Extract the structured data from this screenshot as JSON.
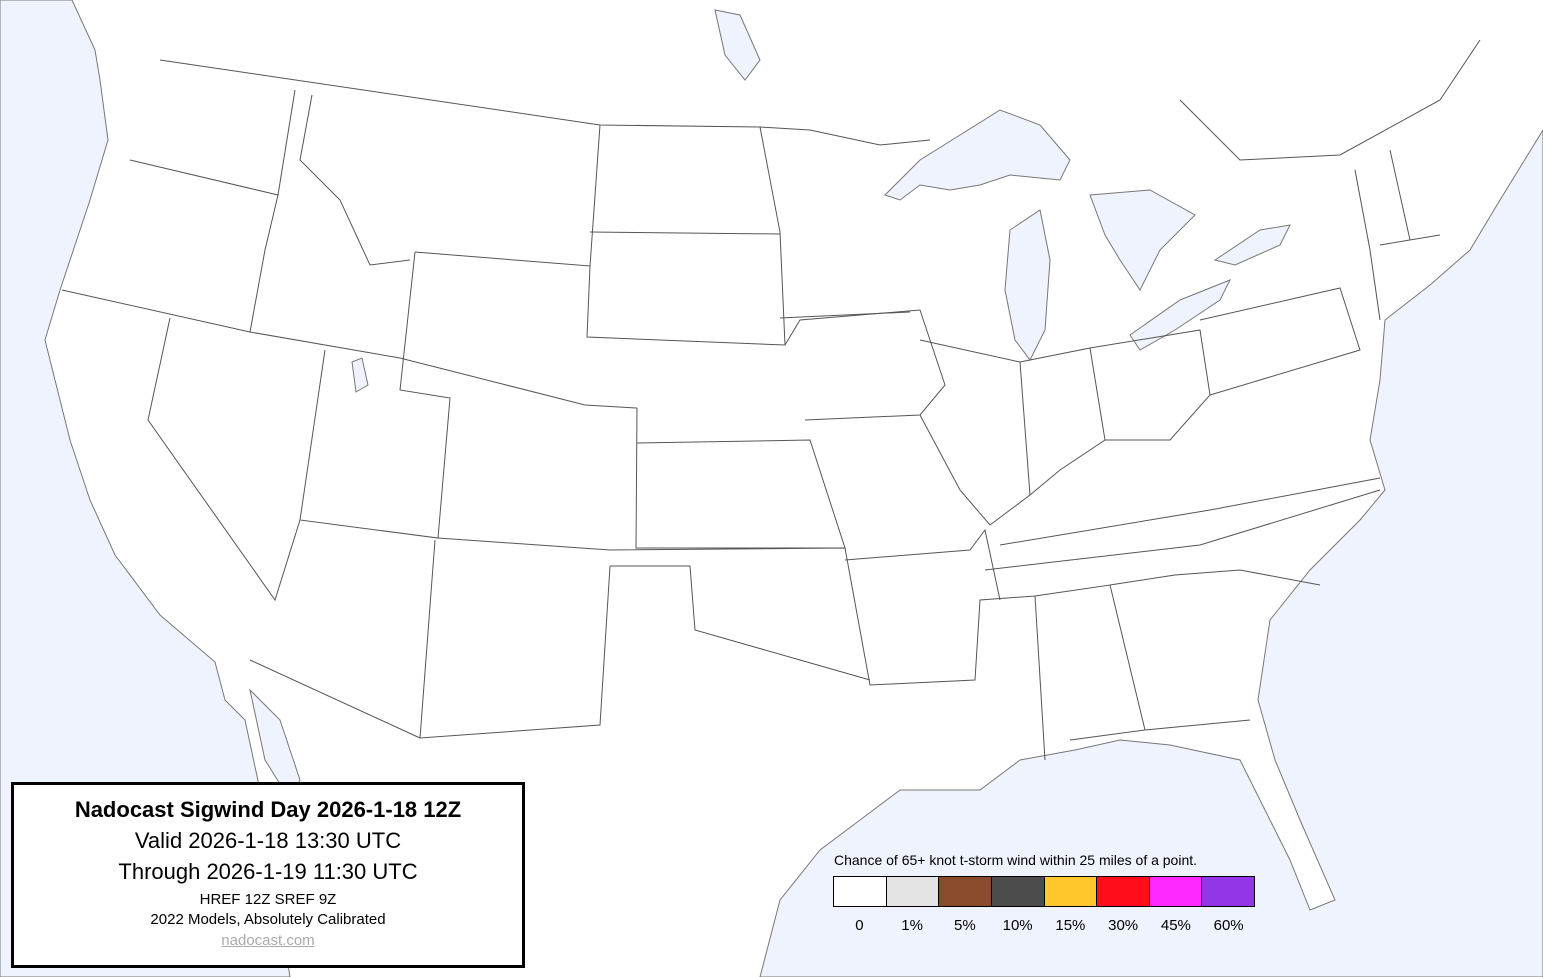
{
  "info_box": {
    "title": "Nadocast Sigwind Day 2026-1-18 12Z",
    "valid": "Valid 2026-1-18 13:30 UTC",
    "through": "Through 2026-1-19 11:30 UTC",
    "models": "HREF 12Z SREF 9Z",
    "calibration": "2022 Models, Absolutely Calibrated",
    "site": "nadocast.com"
  },
  "legend": {
    "caption": "Chance of 65+ knot t-storm wind within 25 miles of a point.",
    "bins": [
      {
        "label": "0",
        "color": "#ffffff"
      },
      {
        "label": "1%",
        "color": "#e4e4e4"
      },
      {
        "label": "5%",
        "color": "#8b4a2b"
      },
      {
        "label": "10%",
        "color": "#4c4c4c"
      },
      {
        "label": "15%",
        "color": "#ffc72c"
      },
      {
        "label": "30%",
        "color": "#ff0d1a"
      },
      {
        "label": "45%",
        "color": "#ff28ff"
      },
      {
        "label": "60%",
        "color": "#9236e8"
      }
    ]
  },
  "map": {
    "land_color": "#ffffff",
    "water_color": "#eef3fd",
    "border_color": "#555555"
  }
}
